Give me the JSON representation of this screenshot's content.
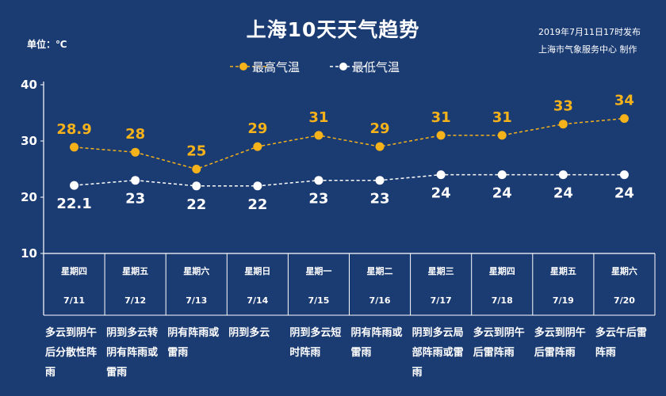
{
  "title": "上海10天天气趋势",
  "unit_label": "单位：℃",
  "issued": [
    "2019年7月11日17时发布",
    "上海市气象服务中心 制作"
  ],
  "colors": {
    "background": "#1b3b73",
    "high": "#f5b21a",
    "low": "#ffffff"
  },
  "chart_data": {
    "type": "line",
    "categories": [
      "7/11",
      "7/12",
      "7/13",
      "7/14",
      "7/15",
      "7/16",
      "7/17",
      "7/18",
      "7/19",
      "7/20"
    ],
    "weekdays": [
      "星期四",
      "星期五",
      "星期六",
      "星期日",
      "星期一",
      "星期二",
      "星期三",
      "星期四",
      "星期五",
      "星期六"
    ],
    "ylim": [
      10,
      40
    ],
    "yticks": [
      "40",
      "30",
      "20",
      "10"
    ],
    "legend_position": "top-center",
    "series": [
      {
        "name": "最高气温",
        "color": "#f5b21a",
        "values": [
          28.9,
          28,
          25,
          29,
          31,
          29,
          31,
          31,
          33,
          34
        ],
        "labels": [
          "28.9",
          "28",
          "25",
          "29",
          "31",
          "29",
          "31",
          "31",
          "33",
          "34"
        ]
      },
      {
        "name": "最低气温",
        "color": "#ffffff",
        "values": [
          22.1,
          23,
          22,
          22,
          23,
          23,
          24,
          24,
          24,
          24
        ],
        "labels": [
          "22.1",
          "23",
          "22",
          "22",
          "23",
          "23",
          "24",
          "24",
          "24",
          "24"
        ]
      }
    ]
  },
  "weather": [
    "多云到阴午后分散性阵雨",
    "阴到多云转阴有阵雨或雷雨",
    "阴有阵雨或雷雨",
    "阴到多云",
    "阴到多云短时阵雨",
    "阴有阵雨或雷雨",
    "阴到多云局部阵雨或雷雨",
    "多云到阴午后雷阵雨",
    "多云到阴午后雷阵雨",
    "多云午后雷阵雨"
  ]
}
